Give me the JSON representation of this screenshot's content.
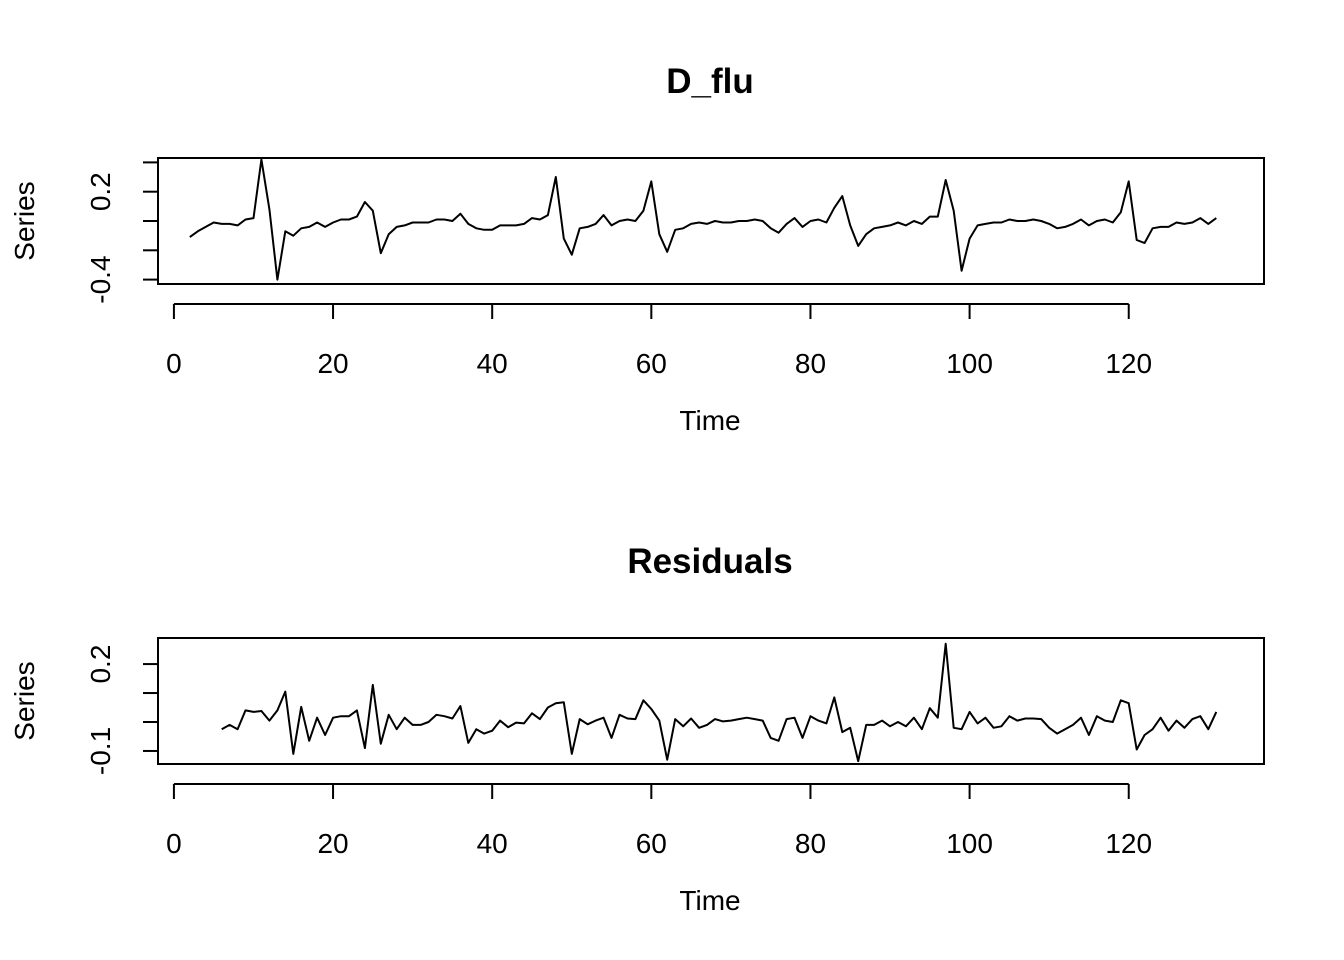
{
  "chart_data": [
    {
      "type": "line",
      "title": "D_flu",
      "xlabel": "Time",
      "ylabel": "Series",
      "xlim": [
        -2,
        137
      ],
      "ylim": [
        -0.43,
        0.43
      ],
      "xticks": [
        0,
        20,
        40,
        60,
        80,
        100,
        120
      ],
      "yticks": [
        -0.4,
        -0.2,
        0.0,
        0.2,
        0.4
      ],
      "ytick_labels": [
        "-0.4",
        "",
        "",
        "0.2",
        ""
      ],
      "grid": false,
      "series": [
        {
          "x": [
            2,
            3,
            4,
            5,
            6,
            7,
            8,
            9,
            10,
            11,
            12,
            13,
            14,
            15,
            16,
            17,
            18,
            19,
            20,
            21,
            22,
            23,
            24,
            25,
            26,
            27,
            28,
            29,
            30,
            31,
            32,
            33,
            34,
            35,
            36,
            37,
            38,
            39,
            40,
            41,
            42,
            43,
            44,
            45,
            46,
            47,
            48,
            49,
            50,
            51,
            52,
            53,
            54,
            55,
            56,
            57,
            58,
            59,
            60,
            61,
            62,
            63,
            64,
            65,
            66,
            67,
            68,
            69,
            70,
            71,
            72,
            73,
            74,
            75,
            76,
            77,
            78,
            79,
            80,
            81,
            82,
            83,
            84,
            85,
            86,
            87,
            88,
            89,
            90,
            91,
            92,
            93,
            94,
            95,
            96,
            97,
            98,
            99,
            100,
            101,
            102,
            103,
            104,
            105,
            106,
            107,
            108,
            109,
            110,
            111,
            112,
            113,
            114,
            115,
            116,
            117,
            118,
            119,
            120,
            121,
            122,
            123,
            124,
            125,
            126,
            127,
            128,
            129,
            130,
            131
          ],
          "values": [
            -0.11,
            -0.07,
            -0.04,
            -0.01,
            -0.02,
            -0.02,
            -0.03,
            0.01,
            0.02,
            0.42,
            0.08,
            -0.4,
            -0.07,
            -0.1,
            -0.05,
            -0.04,
            -0.01,
            -0.04,
            -0.01,
            0.01,
            0.01,
            0.03,
            0.13,
            0.07,
            -0.22,
            -0.09,
            -0.04,
            -0.03,
            -0.01,
            -0.01,
            -0.01,
            0.01,
            0.01,
            0.0,
            0.05,
            -0.02,
            -0.05,
            -0.06,
            -0.06,
            -0.03,
            -0.03,
            -0.03,
            -0.02,
            0.02,
            0.01,
            0.04,
            0.3,
            -0.12,
            -0.23,
            -0.05,
            -0.04,
            -0.02,
            0.04,
            -0.03,
            0.0,
            0.01,
            0.0,
            0.07,
            0.27,
            -0.09,
            -0.21,
            -0.06,
            -0.05,
            -0.02,
            -0.01,
            -0.02,
            0.0,
            -0.01,
            -0.01,
            0.0,
            0.0,
            0.01,
            0.0,
            -0.05,
            -0.08,
            -0.02,
            0.02,
            -0.04,
            0.0,
            0.01,
            -0.01,
            0.09,
            0.17,
            -0.03,
            -0.17,
            -0.09,
            -0.05,
            -0.04,
            -0.03,
            -0.01,
            -0.03,
            0.0,
            -0.02,
            0.03,
            0.03,
            0.28,
            0.07,
            -0.34,
            -0.12,
            -0.03,
            -0.02,
            -0.01,
            -0.01,
            0.01,
            0.0,
            0.0,
            0.01,
            0.0,
            -0.02,
            -0.05,
            -0.04,
            -0.02,
            0.01,
            -0.03,
            0.0,
            0.01,
            -0.01,
            0.06,
            0.27,
            -0.13,
            -0.15,
            -0.05,
            -0.04,
            -0.04,
            -0.01,
            -0.02,
            -0.01,
            0.02,
            -0.02,
            0.02
          ]
        }
      ]
    },
    {
      "type": "line",
      "title": "Residuals",
      "xlabel": "Time",
      "ylabel": "Series",
      "xlim": [
        -2,
        137
      ],
      "ylim": [
        -0.145,
        0.29
      ],
      "xticks": [
        0,
        20,
        40,
        60,
        80,
        100,
        120
      ],
      "yticks": [
        -0.1,
        0.0,
        0.1,
        0.2
      ],
      "ytick_labels": [
        "-0.1",
        "",
        "",
        "0.2"
      ],
      "grid": false,
      "series": [
        {
          "x": [
            6,
            7,
            8,
            9,
            10,
            11,
            12,
            13,
            14,
            15,
            16,
            17,
            18,
            19,
            20,
            21,
            22,
            23,
            24,
            25,
            26,
            27,
            28,
            29,
            30,
            31,
            32,
            33,
            34,
            35,
            36,
            37,
            38,
            39,
            40,
            41,
            42,
            43,
            44,
            45,
            46,
            47,
            48,
            49,
            50,
            51,
            52,
            53,
            54,
            55,
            56,
            57,
            58,
            59,
            60,
            61,
            62,
            63,
            64,
            65,
            66,
            67,
            68,
            69,
            70,
            71,
            72,
            73,
            74,
            75,
            76,
            77,
            78,
            79,
            80,
            81,
            82,
            83,
            84,
            85,
            86,
            87,
            88,
            89,
            90,
            91,
            92,
            93,
            94,
            95,
            96,
            97,
            98,
            99,
            100,
            101,
            102,
            103,
            104,
            105,
            106,
            107,
            108,
            109,
            110,
            111,
            112,
            113,
            114,
            115,
            116,
            117,
            118,
            119,
            120,
            121,
            122,
            123,
            124,
            125,
            126,
            127,
            128,
            129,
            130,
            131
          ],
          "values": [
            -0.025,
            -0.01,
            -0.025,
            0.04,
            0.035,
            0.038,
            0.005,
            0.04,
            0.105,
            -0.11,
            0.052,
            -0.065,
            0.015,
            -0.045,
            0.015,
            0.02,
            0.02,
            0.04,
            -0.09,
            0.128,
            -0.075,
            0.025,
            -0.025,
            0.015,
            -0.01,
            -0.01,
            0.0,
            0.025,
            0.02,
            0.012,
            0.055,
            -0.072,
            -0.025,
            -0.04,
            -0.03,
            0.005,
            -0.018,
            -0.002,
            -0.005,
            0.03,
            0.01,
            0.05,
            0.065,
            0.068,
            -0.11,
            0.01,
            -0.008,
            0.005,
            0.015,
            -0.055,
            0.025,
            0.012,
            0.01,
            0.075,
            0.045,
            0.005,
            -0.13,
            0.01,
            -0.015,
            0.012,
            -0.02,
            -0.01,
            0.01,
            0.002,
            0.005,
            0.01,
            0.015,
            0.01,
            0.005,
            -0.055,
            -0.065,
            0.01,
            0.015,
            -0.055,
            0.02,
            0.005,
            -0.005,
            0.085,
            -0.035,
            -0.02,
            -0.135,
            -0.01,
            -0.01,
            0.005,
            -0.015,
            0.0,
            -0.015,
            0.015,
            -0.025,
            0.048,
            0.015,
            0.27,
            -0.02,
            -0.025,
            0.035,
            -0.005,
            0.015,
            -0.02,
            -0.015,
            0.02,
            0.005,
            0.012,
            0.012,
            0.01,
            -0.02,
            -0.04,
            -0.025,
            -0.01,
            0.015,
            -0.045,
            0.02,
            0.005,
            0.0,
            0.075,
            0.065,
            -0.095,
            -0.045,
            -0.025,
            0.015,
            -0.03,
            0.005,
            -0.02,
            0.01,
            0.02,
            -0.025,
            0.035
          ]
        }
      ]
    }
  ]
}
